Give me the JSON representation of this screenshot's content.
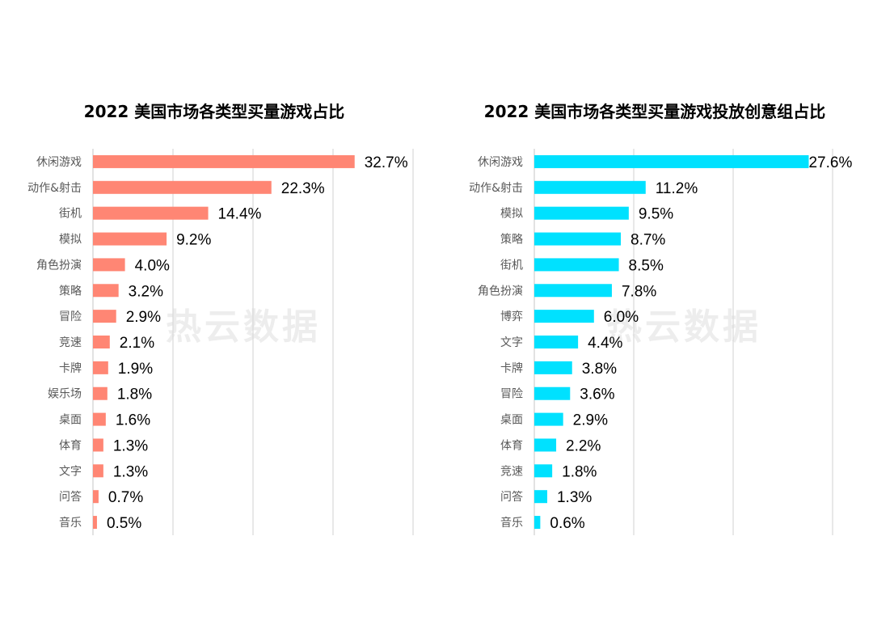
{
  "watermark": "热云数据",
  "chart_data": [
    {
      "type": "bar",
      "orientation": "horizontal",
      "title": "2022 美国市场各类型买量游戏占比",
      "categories": [
        "休闲游戏",
        "动作&射击",
        "街机",
        "模拟",
        "角色扮演",
        "策略",
        "冒险",
        "竞速",
        "卡牌",
        "娱乐场",
        "桌面",
        "体育",
        "文字",
        "问答",
        "音乐"
      ],
      "values": [
        32.7,
        22.3,
        14.4,
        9.2,
        4.0,
        3.2,
        2.9,
        2.1,
        1.9,
        1.8,
        1.6,
        1.3,
        1.3,
        0.7,
        0.5
      ],
      "labels": [
        "32.7%",
        "22.3%",
        "14.4%",
        "9.2%",
        "4.0%",
        "3.2%",
        "2.9%",
        "2.1%",
        "1.9%",
        "1.8%",
        "1.6%",
        "1.3%",
        "1.3%",
        "0.7%",
        "0.5%"
      ],
      "unit": "%",
      "xlim": [
        0,
        40
      ],
      "grid": true,
      "color": "#FF8674"
    },
    {
      "type": "bar",
      "orientation": "horizontal",
      "title": "2022 美国市场各类型买量游戏投放创意组占比",
      "categories": [
        "休闲游戏",
        "动作&射击",
        "模拟",
        "策略",
        "街机",
        "角色扮演",
        "博弈",
        "文字",
        "卡牌",
        "冒险",
        "桌面",
        "体育",
        "竞速",
        "问答",
        "音乐"
      ],
      "values": [
        27.6,
        11.2,
        9.5,
        8.7,
        8.5,
        7.8,
        6.0,
        4.4,
        3.8,
        3.6,
        2.9,
        2.2,
        1.8,
        1.3,
        0.6
      ],
      "labels": [
        "27.6%",
        "11.2%",
        "9.5%",
        "8.7%",
        "8.5%",
        "7.8%",
        "6.0%",
        "4.4%",
        "3.8%",
        "3.6%",
        "2.9%",
        "2.2%",
        "1.8%",
        "1.3%",
        "0.6%"
      ],
      "unit": "%",
      "xlim": [
        0,
        30
      ],
      "grid": true,
      "color": "#00E1FF"
    }
  ]
}
